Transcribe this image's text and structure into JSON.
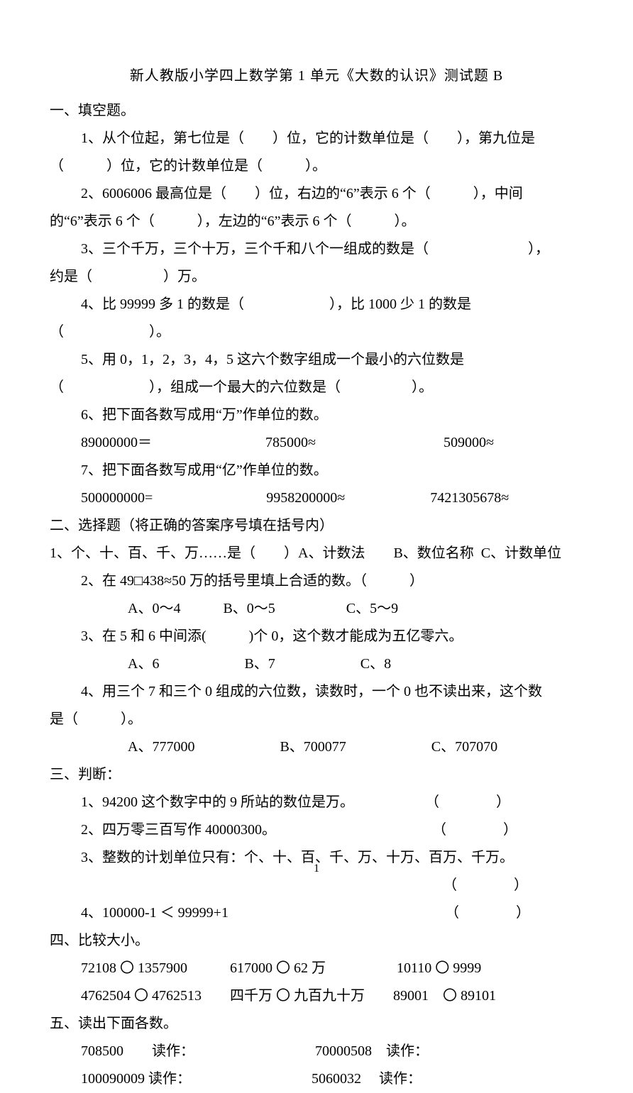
{
  "title": "新人教版小学四上数学第 1 单元《大数的认识》测试题 B",
  "s1": {
    "header": "一、填空题。",
    "q1a": "1、从个位起，第七位是（　　）位，它的计数单位是（　　），第九位是",
    "q1b": "（　　　）位，它的计数单位是（　　　）。",
    "q2a": "2、6006006 最高位是（　　）位，右边的“6”表示 6 个（　　　），中间",
    "q2b": "的“6”表示 6 个（　　　），左边的“6”表示 6 个（　　　）。",
    "q3a": "3、三个千万，三个十万，三个千和八个一组成的数是（　　　　　　　），",
    "q3b": "约是（　　　　　）万。",
    "q4a": "4、比 99999 多 1 的数是（　　　　　　），比 1000 少 1 的数是",
    "q4b": "（　　　　　　）。",
    "q5a": "5、用 0，1，2，3，4，5 这六个数字组成一个最小的六位数是",
    "q5b": "（　　　　　　），组成一个最大的六位数是（　　　　　）。",
    "q6": "6、把下面各数写成用“万”作单位的数。",
    "q6r": "89000000＝　　　　　　　　785000≈　　　　　　　　　509000≈",
    "q7": "7、把下面各数写成用“亿”作单位的数。",
    "q7r": "500000000=　　　　　　　　9958200000≈　　　　　　7421305678≈"
  },
  "s2": {
    "header": "二、选择题（将正确的答案序号填在括号内）",
    "q1": "1、个、十、百、千、万……是（　　）A、计数法　　B、数位名称  C、计数单位",
    "q2": "2、在 49□438≈50 万的括号里填上合适的数。（　　　）",
    "q2o": "　A、0～4　　　B、0～5　　　　　C、5～9",
    "q3": "3、在 5 和 6 中间添(　　　)个 0，这个数才能成为五亿零六。",
    "q3o": "　A、6　　　　　　B、7　　　　　　C、8",
    "q4a": "4、用三个 7 和三个 0 组成的六位数，读数时，一个 0 也不读出来，这个数",
    "q4b": "是（　　　）。",
    "q4o": "　A、777000　　　　　　B、700077　　　　　　C、707070"
  },
  "s3": {
    "header": "三、判断：",
    "q1": "1、94200 这个数字中的 9 所站的数位是万。　　　　　　（　　　　）",
    "q2": "2、四万零三百写作 40000300。　　　　　　　　　　　　（　　　　）",
    "q3a": "3、整数的计划单位只有：个、十、百、千、万、十万、百万、千万。",
    "q3b": "　　　　　　　　　　　　　　　　　　　　　　　　　　（　　　　）",
    "q4": "4、100000-1 ＜ 99999+1　　　　　　　　　　　　　　　 （　　　　）"
  },
  "s4": {
    "header": "四、比较大小。",
    "r1": "72108 〇 1357900　　　617000 〇 62 万　　　　　10110 〇 9999",
    "r2": "4762504 〇 4762513　　四千万 〇 九百九十万　　89001　〇 89101"
  },
  "s5": {
    "header": "五、读出下面各数。",
    "r1": "708500　　读作：　　　　　　　　　70000508　读作：",
    "r2": "100090009 读作：　　　　　　　　　5060032　 读作："
  },
  "pageNumber": "1",
  "colors": {
    "text": "#000000",
    "background": "#ffffff"
  },
  "typography": {
    "body_fontsize": 20,
    "title_fontsize": 20,
    "line_height": 1.95,
    "font_family": "SimSun"
  }
}
